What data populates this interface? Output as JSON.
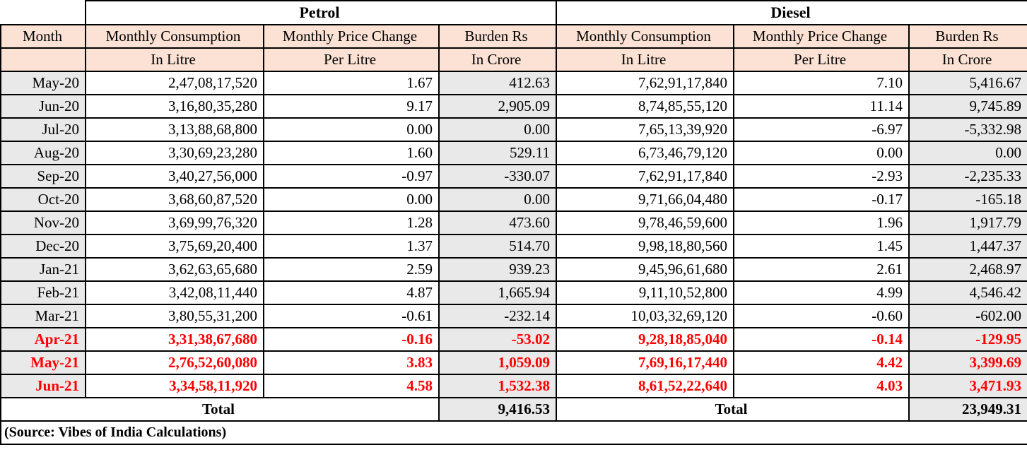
{
  "colors": {
    "header_bg": "#fbe2d5",
    "shaded_bg": "#e9e9e9",
    "highlight_text": "#ff0000",
    "border": "#000000"
  },
  "labels": {
    "month": "Month",
    "consumption": "Monthly Consumption",
    "price_change": "Monthly Price Change",
    "burden": "Burden Rs",
    "in_litre": "In Litre",
    "per_litre": "Per Litre",
    "in_crore": "In Crore",
    "total": "Total"
  },
  "chart_data": {
    "type": "table",
    "groups": [
      "Petrol",
      "Diesel"
    ],
    "columns": [
      "Month",
      "Petrol Monthly Consumption In Litre",
      "Petrol Monthly Price Change Per Litre",
      "Petrol Burden Rs In Crore",
      "Diesel Monthly Consumption In Litre",
      "Diesel Monthly Price Change Per Litre",
      "Diesel Burden Rs In Crore"
    ],
    "rows": [
      {
        "month": "May-20",
        "highlight": false,
        "petrol": {
          "consumption": "2,47,08,17,520",
          "price_change": "1.67",
          "burden": "412.63"
        },
        "diesel": {
          "consumption": "7,62,91,17,840",
          "price_change": "7.10",
          "burden": "5,416.67"
        }
      },
      {
        "month": "Jun-20",
        "highlight": false,
        "petrol": {
          "consumption": "3,16,80,35,280",
          "price_change": "9.17",
          "burden": "2,905.09"
        },
        "diesel": {
          "consumption": "8,74,85,55,120",
          "price_change": "11.14",
          "burden": "9,745.89"
        }
      },
      {
        "month": "Jul-20",
        "highlight": false,
        "petrol": {
          "consumption": "3,13,88,68,800",
          "price_change": "0.00",
          "burden": "0.00"
        },
        "diesel": {
          "consumption": "7,65,13,39,920",
          "price_change": "-6.97",
          "burden": "-5,332.98"
        }
      },
      {
        "month": "Aug-20",
        "highlight": false,
        "petrol": {
          "consumption": "3,30,69,23,280",
          "price_change": "1.60",
          "burden": "529.11"
        },
        "diesel": {
          "consumption": "6,73,46,79,120",
          "price_change": "0.00",
          "burden": "0.00"
        }
      },
      {
        "month": "Sep-20",
        "highlight": false,
        "petrol": {
          "consumption": "3,40,27,56,000",
          "price_change": "-0.97",
          "burden": "-330.07"
        },
        "diesel": {
          "consumption": "7,62,91,17,840",
          "price_change": "-2.93",
          "burden": "-2,235.33"
        }
      },
      {
        "month": "Oct-20",
        "highlight": false,
        "petrol": {
          "consumption": "3,68,60,87,520",
          "price_change": "0.00",
          "burden": "0.00"
        },
        "diesel": {
          "consumption": "9,71,66,04,480",
          "price_change": "-0.17",
          "burden": "-165.18"
        }
      },
      {
        "month": "Nov-20",
        "highlight": false,
        "petrol": {
          "consumption": "3,69,99,76,320",
          "price_change": "1.28",
          "burden": "473.60"
        },
        "diesel": {
          "consumption": "9,78,46,59,600",
          "price_change": "1.96",
          "burden": "1,917.79"
        }
      },
      {
        "month": "Dec-20",
        "highlight": false,
        "petrol": {
          "consumption": "3,75,69,20,400",
          "price_change": "1.37",
          "burden": "514.70"
        },
        "diesel": {
          "consumption": "9,98,18,80,560",
          "price_change": "1.45",
          "burden": "1,447.37"
        }
      },
      {
        "month": "Jan-21",
        "highlight": false,
        "petrol": {
          "consumption": "3,62,63,65,680",
          "price_change": "2.59",
          "burden": "939.23"
        },
        "diesel": {
          "consumption": "9,45,96,61,680",
          "price_change": "2.61",
          "burden": "2,468.97"
        }
      },
      {
        "month": "Feb-21",
        "highlight": false,
        "petrol": {
          "consumption": "3,42,08,11,440",
          "price_change": "4.87",
          "burden": "1,665.94"
        },
        "diesel": {
          "consumption": "9,11,10,52,800",
          "price_change": "4.99",
          "burden": "4,546.42"
        }
      },
      {
        "month": "Mar-21",
        "highlight": false,
        "petrol": {
          "consumption": "3,80,55,31,200",
          "price_change": "-0.61",
          "burden": "-232.14"
        },
        "diesel": {
          "consumption": "10,03,32,69,120",
          "price_change": "-0.60",
          "burden": "-602.00"
        }
      },
      {
        "month": "Apr-21",
        "highlight": true,
        "petrol": {
          "consumption": "3,31,38,67,680",
          "price_change": "-0.16",
          "burden": "-53.02"
        },
        "diesel": {
          "consumption": "9,28,18,85,040",
          "price_change": "-0.14",
          "burden": "-129.95"
        }
      },
      {
        "month": "May-21",
        "highlight": true,
        "petrol": {
          "consumption": "2,76,52,60,080",
          "price_change": "3.83",
          "burden": "1,059.09"
        },
        "diesel": {
          "consumption": "7,69,16,17,440",
          "price_change": "4.42",
          "burden": "3,399.69"
        }
      },
      {
        "month": "Jun-21",
        "highlight": true,
        "petrol": {
          "consumption": "3,34,58,11,920",
          "price_change": "4.58",
          "burden": "1,532.38"
        },
        "diesel": {
          "consumption": "8,61,52,22,640",
          "price_change": "4.03",
          "burden": "3,471.93"
        }
      }
    ],
    "petrol_total_burden": "9,416.53",
    "diesel_total_burden": "23,949.31",
    "source": "(Source: Vibes of India Calculations)"
  }
}
